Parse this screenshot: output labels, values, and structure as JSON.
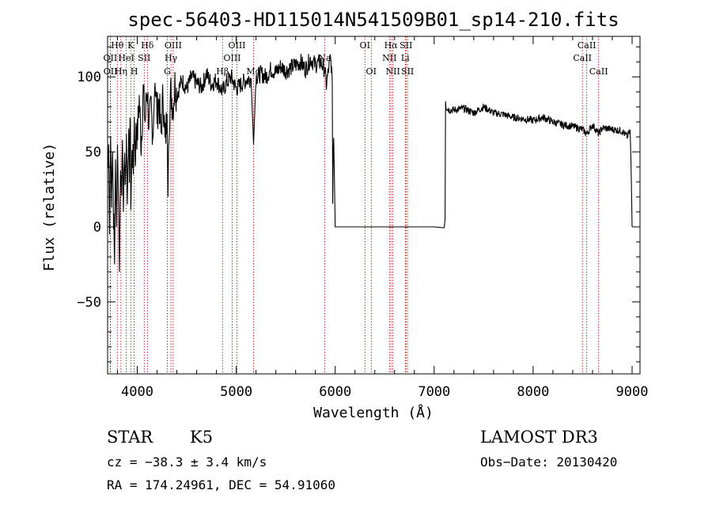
{
  "chart_data": {
    "type": "line",
    "title": "spec-56403-HD115014N541509B01_sp14-210.fits",
    "xlabel": "Wavelength (Å)",
    "ylabel": "Flux (relative)",
    "xlim": [
      3700,
      9080
    ],
    "ylim": [
      -98,
      127
    ],
    "x_ticks": [
      4000,
      5000,
      6000,
      7000,
      8000,
      9000
    ],
    "y_ticks": [
      -50,
      0,
      50,
      100
    ],
    "series": [
      {
        "name": "spectrum",
        "x": [
          3700,
          3710,
          3720,
          3730,
          3740,
          3750,
          3760,
          3770,
          3780,
          3790,
          3800,
          3810,
          3820,
          3830,
          3840,
          3850,
          3860,
          3870,
          3880,
          3890,
          3900,
          3910,
          3920,
          3930,
          3935,
          3950,
          3960,
          3970,
          3980,
          3990,
          4000,
          4020,
          4040,
          4060,
          4080,
          4100,
          4120,
          4140,
          4160,
          4180,
          4200,
          4220,
          4240,
          4260,
          4280,
          4300,
          4310,
          4320,
          4340,
          4360,
          4380,
          4400,
          4450,
          4500,
          4550,
          4600,
          4650,
          4700,
          4750,
          4800,
          4861,
          4900,
          4950,
          5000,
          5050,
          5100,
          5150,
          5175,
          5200,
          5250,
          5300,
          5350,
          5400,
          5450,
          5500,
          5550,
          5600,
          5650,
          5700,
          5750,
          5800,
          5850,
          5893,
          5910,
          5950,
          5960,
          5970,
          5975,
          5980,
          5985,
          5990,
          6000,
          6500,
          7000,
          7100,
          7110,
          7115,
          7120,
          7150,
          7200,
          7300,
          7400,
          7500,
          7600,
          7700,
          7800,
          7900,
          8000,
          8100,
          8200,
          8300,
          8400,
          8498,
          8542,
          8600,
          8662,
          8700,
          8800,
          8900,
          8950,
          8980,
          8990,
          9000
        ],
        "y": [
          40,
          55,
          -5,
          60,
          20,
          50,
          10,
          -25,
          45,
          0,
          55,
          15,
          -30,
          40,
          20,
          58,
          10,
          52,
          30,
          62,
          15,
          60,
          40,
          70,
          20,
          55,
          35,
          75,
          45,
          70,
          60,
          85,
          55,
          90,
          70,
          95,
          65,
          80,
          60,
          100,
          75,
          85,
          60,
          90,
          55,
          75,
          20,
          70,
          90,
          80,
          95,
          88,
          98,
          92,
          100,
          96,
          93,
          102,
          95,
          98,
          90,
          96,
          100,
          92,
          95,
          98,
          99,
          55,
          100,
          102,
          100,
          105,
          103,
          107,
          104,
          106,
          108,
          110,
          105,
          112,
          108,
          110,
          105,
          95,
          112,
          108,
          95,
          20,
          50,
          60,
          40,
          0,
          0,
          0,
          0,
          5,
          85,
          80,
          78,
          78,
          79,
          76,
          80,
          76,
          75,
          73,
          72,
          71,
          73,
          70,
          68,
          67,
          65,
          62,
          68,
          62,
          66,
          65,
          64,
          60,
          64,
          40,
          0
        ]
      }
    ],
    "spectral_lines": [
      {
        "label": "Hθ",
        "wavelength": 3798,
        "row": 1
      },
      {
        "label": "OII",
        "wavelength": 3727,
        "row": 2
      },
      {
        "label": "OII",
        "wavelength": 3729,
        "row": 3
      },
      {
        "label": "K",
        "wavelength": 3934,
        "row": 1
      },
      {
        "label": "HeI",
        "wavelength": 3889,
        "row": 2
      },
      {
        "label": "Hη",
        "wavelength": 3835,
        "row": 3
      },
      {
        "label": "SII",
        "wavelength": 4070,
        "row": 2
      },
      {
        "label": "H",
        "wavelength": 3969,
        "row": 3
      },
      {
        "label": "Hδ",
        "wavelength": 4102,
        "row": 1
      },
      {
        "label": "OIII",
        "wavelength": 4363,
        "row": 1
      },
      {
        "label": "Hγ",
        "wavelength": 4340,
        "row": 2
      },
      {
        "label": "G",
        "wavelength": 4304,
        "row": 3
      },
      {
        "label": "OIII",
        "wavelength": 5007,
        "row": 1
      },
      {
        "label": "OIII",
        "wavelength": 4959,
        "row": 2
      },
      {
        "label": "Hβ",
        "wavelength": 4861,
        "row": 3
      },
      {
        "label": "Mg",
        "wavelength": 5175,
        "row": 3
      },
      {
        "label": "Na",
        "wavelength": 5893,
        "row": 2
      },
      {
        "label": "OI",
        "wavelength": 6300,
        "row": 1
      },
      {
        "label": "OI",
        "wavelength": 6364,
        "row": 3
      },
      {
        "label": "Hα",
        "wavelength": 6563,
        "row": 1
      },
      {
        "label": "NII",
        "wavelength": 6548,
        "row": 2
      },
      {
        "label": "NII",
        "wavelength": 6583,
        "row": 3
      },
      {
        "label": "SII",
        "wavelength": 6716,
        "row": 1
      },
      {
        "label": "Li",
        "wavelength": 6708,
        "row": 2
      },
      {
        "label": "SII",
        "wavelength": 6731,
        "row": 3
      },
      {
        "label": "CaII",
        "wavelength": 8542,
        "row": 1
      },
      {
        "label": "CaII",
        "wavelength": 8498,
        "row": 2
      },
      {
        "label": "CaII",
        "wavelength": 8662,
        "row": 3
      }
    ]
  },
  "info": {
    "class_label": "STAR",
    "subclass": "K5",
    "survey": "LAMOST DR3",
    "cz": "cz = −38.3 ± 3.4 km/s",
    "obs_date": "Obs−Date: 20130420",
    "coords": "RA = 174.24961, DEC =  54.91060"
  },
  "colors": {
    "spectrum": "#000000",
    "line_marker": "#aa0000",
    "axes": "#000000"
  }
}
